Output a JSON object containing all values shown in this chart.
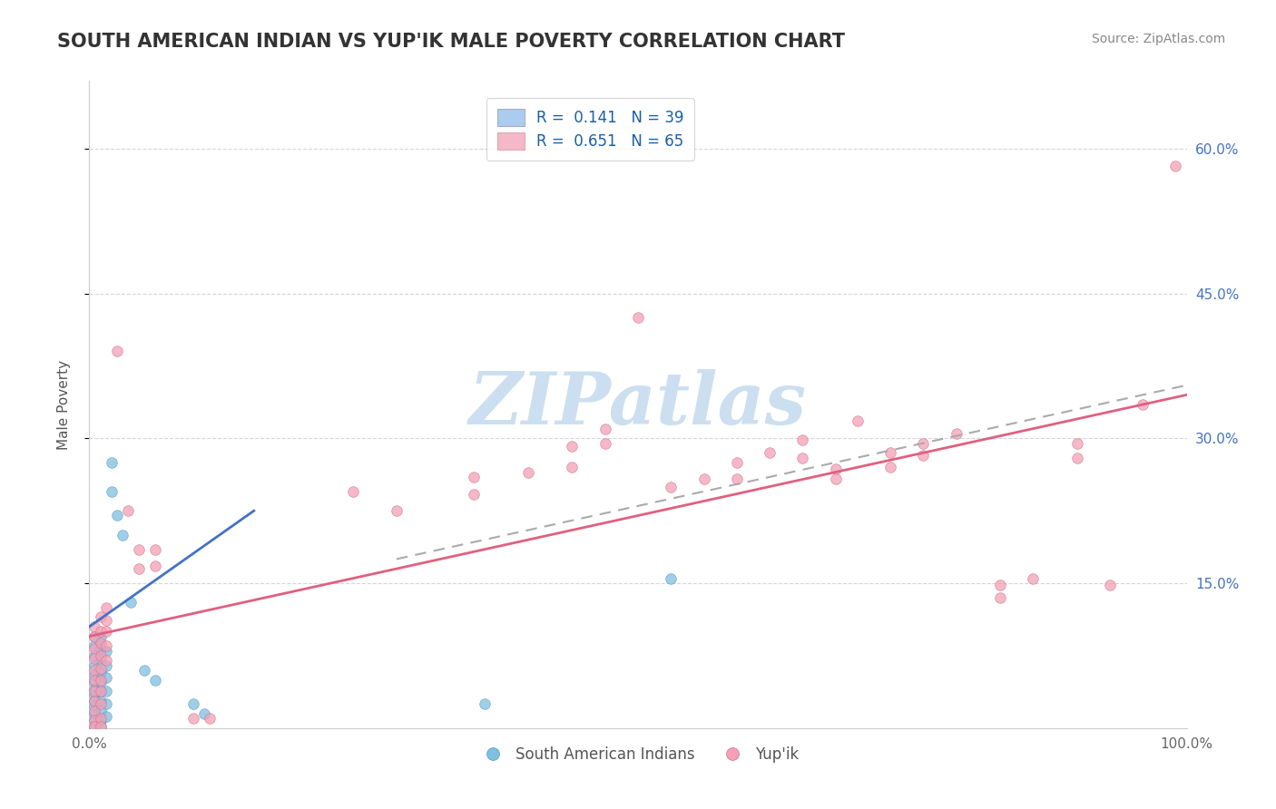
{
  "title": "SOUTH AMERICAN INDIAN VS YUP'IK MALE POVERTY CORRELATION CHART",
  "source": "Source: ZipAtlas.com",
  "ylabel": "Male Poverty",
  "xlim": [
    0,
    1
  ],
  "ylim": [
    0,
    0.67
  ],
  "blue_color": "#7fbfdf",
  "pink_color": "#f4a0b5",
  "blue_line_color": "#4472c4",
  "pink_line_color": "#e06080",
  "dash_line_color": "#aaaaaa",
  "title_color": "#333333",
  "watermark_color": "#ccdff0",
  "background_color": "#ffffff",
  "grid_color": "#cccccc",
  "blue_scatter": [
    [
      0.005,
      0.095
    ],
    [
      0.005,
      0.085
    ],
    [
      0.005,
      0.075
    ],
    [
      0.005,
      0.065
    ],
    [
      0.005,
      0.055
    ],
    [
      0.005,
      0.048
    ],
    [
      0.005,
      0.04
    ],
    [
      0.005,
      0.035
    ],
    [
      0.005,
      0.028
    ],
    [
      0.005,
      0.022
    ],
    [
      0.005,
      0.015
    ],
    [
      0.005,
      0.008
    ],
    [
      0.005,
      0.002
    ],
    [
      0.01,
      0.095
    ],
    [
      0.01,
      0.082
    ],
    [
      0.01,
      0.07
    ],
    [
      0.01,
      0.058
    ],
    [
      0.01,
      0.048
    ],
    [
      0.01,
      0.038
    ],
    [
      0.01,
      0.028
    ],
    [
      0.01,
      0.018
    ],
    [
      0.01,
      0.008
    ],
    [
      0.01,
      0.002
    ],
    [
      0.015,
      0.08
    ],
    [
      0.015,
      0.065
    ],
    [
      0.015,
      0.052
    ],
    [
      0.015,
      0.038
    ],
    [
      0.015,
      0.025
    ],
    [
      0.015,
      0.012
    ],
    [
      0.02,
      0.275
    ],
    [
      0.02,
      0.245
    ],
    [
      0.025,
      0.22
    ],
    [
      0.03,
      0.2
    ],
    [
      0.038,
      0.13
    ],
    [
      0.05,
      0.06
    ],
    [
      0.06,
      0.05
    ],
    [
      0.095,
      0.025
    ],
    [
      0.105,
      0.015
    ],
    [
      0.36,
      0.025
    ],
    [
      0.53,
      0.155
    ]
  ],
  "pink_scatter": [
    [
      0.005,
      0.105
    ],
    [
      0.005,
      0.095
    ],
    [
      0.005,
      0.082
    ],
    [
      0.005,
      0.072
    ],
    [
      0.005,
      0.06
    ],
    [
      0.005,
      0.05
    ],
    [
      0.005,
      0.038
    ],
    [
      0.005,
      0.028
    ],
    [
      0.005,
      0.018
    ],
    [
      0.005,
      0.008
    ],
    [
      0.005,
      0.002
    ],
    [
      0.01,
      0.115
    ],
    [
      0.01,
      0.1
    ],
    [
      0.01,
      0.088
    ],
    [
      0.01,
      0.075
    ],
    [
      0.01,
      0.062
    ],
    [
      0.01,
      0.05
    ],
    [
      0.01,
      0.038
    ],
    [
      0.01,
      0.025
    ],
    [
      0.01,
      0.01
    ],
    [
      0.01,
      0.002
    ],
    [
      0.015,
      0.125
    ],
    [
      0.015,
      0.112
    ],
    [
      0.015,
      0.1
    ],
    [
      0.015,
      0.085
    ],
    [
      0.015,
      0.07
    ],
    [
      0.025,
      0.39
    ],
    [
      0.035,
      0.225
    ],
    [
      0.045,
      0.185
    ],
    [
      0.045,
      0.165
    ],
    [
      0.06,
      0.185
    ],
    [
      0.06,
      0.168
    ],
    [
      0.095,
      0.01
    ],
    [
      0.11,
      0.01
    ],
    [
      0.24,
      0.245
    ],
    [
      0.28,
      0.225
    ],
    [
      0.35,
      0.26
    ],
    [
      0.35,
      0.242
    ],
    [
      0.4,
      0.265
    ],
    [
      0.44,
      0.292
    ],
    [
      0.44,
      0.27
    ],
    [
      0.47,
      0.31
    ],
    [
      0.47,
      0.295
    ],
    [
      0.5,
      0.425
    ],
    [
      0.53,
      0.25
    ],
    [
      0.56,
      0.258
    ],
    [
      0.59,
      0.275
    ],
    [
      0.59,
      0.258
    ],
    [
      0.62,
      0.285
    ],
    [
      0.65,
      0.298
    ],
    [
      0.65,
      0.28
    ],
    [
      0.68,
      0.268
    ],
    [
      0.68,
      0.258
    ],
    [
      0.7,
      0.318
    ],
    [
      0.73,
      0.285
    ],
    [
      0.73,
      0.27
    ],
    [
      0.76,
      0.295
    ],
    [
      0.76,
      0.282
    ],
    [
      0.79,
      0.305
    ],
    [
      0.83,
      0.148
    ],
    [
      0.83,
      0.135
    ],
    [
      0.86,
      0.155
    ],
    [
      0.9,
      0.295
    ],
    [
      0.9,
      0.28
    ],
    [
      0.93,
      0.148
    ],
    [
      0.96,
      0.335
    ],
    [
      0.99,
      0.582
    ]
  ],
  "blue_line_x": [
    0.0,
    0.15
  ],
  "blue_line_y": [
    0.105,
    0.225
  ],
  "dash_line_x": [
    0.28,
    1.0
  ],
  "dash_line_y": [
    0.175,
    0.355
  ],
  "pink_line_x": [
    0.0,
    1.0
  ],
  "pink_line_y": [
    0.095,
    0.345
  ]
}
